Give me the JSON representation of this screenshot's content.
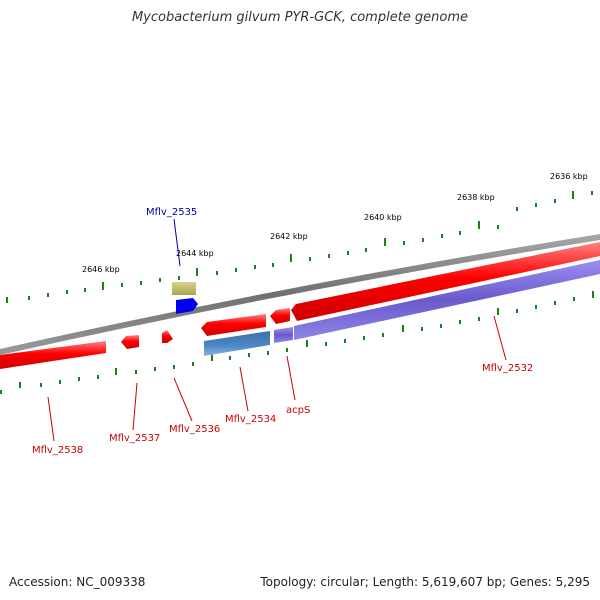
{
  "title": "Mycobacterium gilvum PYR-GCK, complete genome",
  "footer": {
    "accession": "Accession: NC_009338",
    "summary": "Topology: circular; Length: 5,619,607 bp; Genes: 5,295"
  },
  "colors": {
    "backbone": "#808080",
    "gene_forward": "#ff0000",
    "gene_reverse": "#7a6cd6",
    "gene_reverse_alt": "#4c88c6",
    "gene_olive": "#c2bd6a",
    "gene_blue": "#0000ee",
    "tick": "#1a801a",
    "label_red": "#cc0000",
    "label_blue": "#0000aa"
  },
  "scale_labels": [
    {
      "text": "2646 kbp"
    },
    {
      "text": "2644 kbp"
    },
    {
      "text": "2642 kbp"
    },
    {
      "text": "2640 kbp"
    },
    {
      "text": "2638 kbp"
    },
    {
      "text": "2636 kbp"
    }
  ],
  "gene_labels": [
    {
      "id": "mflv2535",
      "text": "Mflv_2535",
      "color": "blue"
    },
    {
      "id": "mflv2538",
      "text": "Mflv_2538",
      "color": "red"
    },
    {
      "id": "mflv2537",
      "text": "Mflv_2537",
      "color": "red"
    },
    {
      "id": "mflv2536",
      "text": "Mflv_2536",
      "color": "red"
    },
    {
      "id": "mflv2534",
      "text": "Mflv_2534",
      "color": "red"
    },
    {
      "id": "acps",
      "text": "acpS",
      "color": "red"
    },
    {
      "id": "mflv2532",
      "text": "Mflv_2532",
      "color": "red"
    }
  ]
}
